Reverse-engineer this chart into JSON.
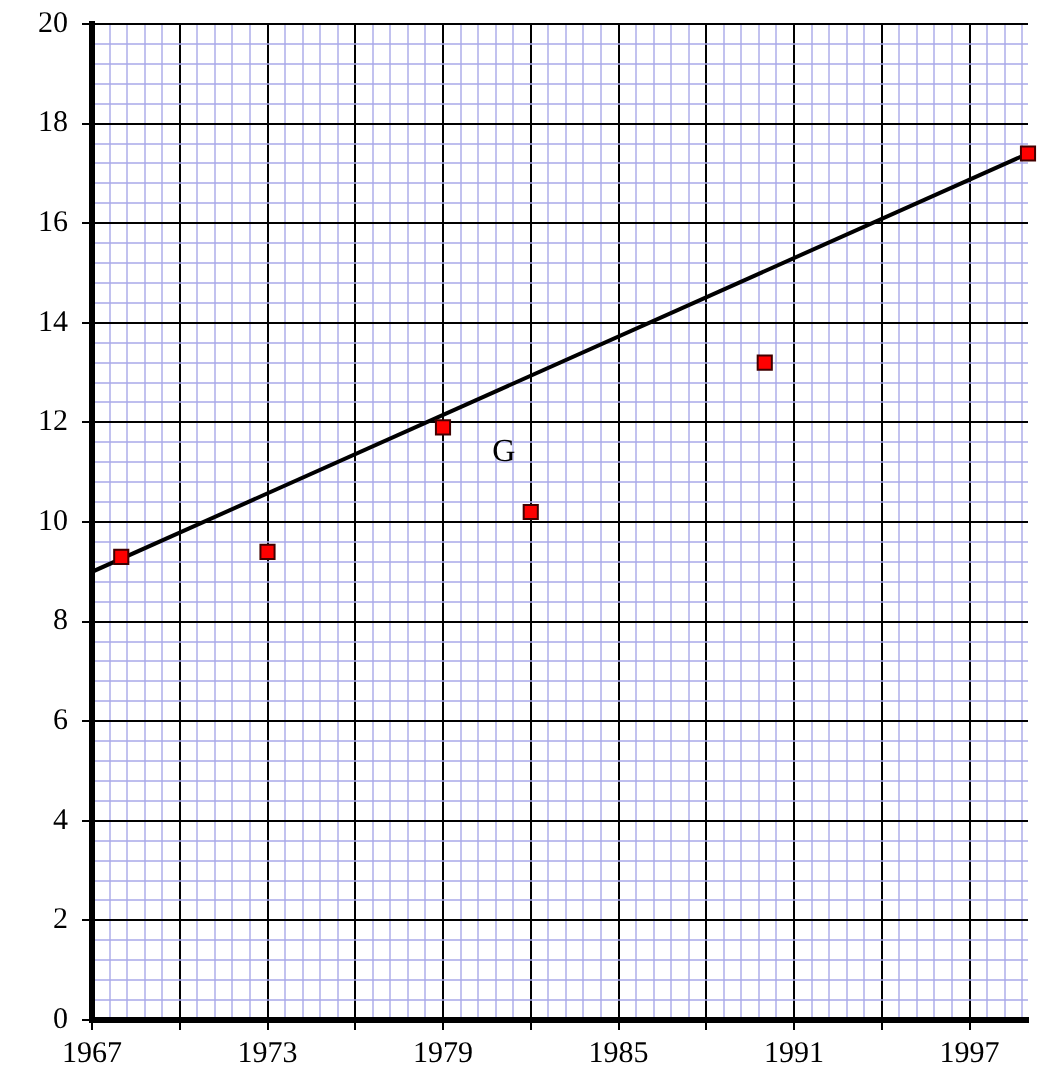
{
  "chart_data": {
    "type": "scatter",
    "grid": true,
    "legend": false,
    "xlim": [
      1967,
      1999
    ],
    "ylim": [
      0,
      20
    ],
    "xticks": [
      1967,
      {
        "value": 1967.6,
        "label": null
      },
      {
        "value": 1968.2,
        "label": null
      },
      {
        "value": 1968.8,
        "label": null
      },
      {
        "value": 1969.4,
        "label": null
      },
      {
        "value": 1970,
        "label": null
      },
      {
        "value": 1970.6,
        "label": null
      },
      {
        "value": 1971.2,
        "label": null
      },
      {
        "value": 1971.8,
        "label": null
      },
      {
        "value": 1972.4,
        "label": null
      },
      1973,
      {
        "value": 1973.6,
        "label": null
      },
      {
        "value": 1974.2,
        "label": null
      },
      {
        "value": 1974.8,
        "label": null
      },
      {
        "value": 1975.4,
        "label": null
      },
      {
        "value": 1976,
        "label": null
      },
      {
        "value": 1976.6,
        "label": null
      },
      {
        "value": 1977.2,
        "label": null
      },
      {
        "value": 1977.8,
        "label": null
      },
      {
        "value": 1978.4,
        "label": null
      },
      1979,
      {
        "value": 1979.6,
        "label": null
      },
      {
        "value": 1980.2,
        "label": null
      },
      {
        "value": 1980.8,
        "label": null
      },
      {
        "value": 1981.4,
        "label": null
      },
      {
        "value": 1982,
        "label": null
      },
      {
        "value": 1982.6,
        "label": null
      },
      {
        "value": 1983.2,
        "label": null
      },
      {
        "value": 1983.8,
        "label": null
      },
      {
        "value": 1984.4,
        "label": null
      },
      1985,
      {
        "value": 1985.6,
        "label": null
      },
      {
        "value": 1986.2,
        "label": null
      },
      {
        "value": 1986.8,
        "label": null
      },
      {
        "value": 1987.4,
        "label": null
      },
      {
        "value": 1988,
        "label": null
      },
      {
        "value": 1988.6,
        "label": null
      },
      {
        "value": 1989.2,
        "label": null
      },
      {
        "value": 1989.8,
        "label": null
      },
      {
        "value": 1990.4,
        "label": null
      },
      1991,
      {
        "value": 1991.6,
        "label": null
      },
      {
        "value": 1992.2,
        "label": null
      },
      {
        "value": 1992.8,
        "label": null
      },
      {
        "value": 1993.4,
        "label": null
      },
      {
        "value": 1994,
        "label": null
      },
      {
        "value": 1994.6,
        "label": null
      },
      {
        "value": 1995.2,
        "label": null
      },
      {
        "value": 1995.8,
        "label": null
      },
      {
        "value": 1996.4,
        "label": null
      },
      1997,
      {
        "value": 1997.6,
        "label": null
      },
      {
        "value": 1998.2,
        "label": null
      },
      {
        "value": 1998.8,
        "label": null
      }
    ],
    "yticks": [
      0,
      {
        "value": 0.4,
        "label": null
      },
      {
        "value": 0.8,
        "label": null
      },
      {
        "value": 1.2,
        "label": null
      },
      {
        "value": 1.6,
        "label": null
      },
      2,
      {
        "value": 2.4,
        "label": null
      },
      {
        "value": 2.8,
        "label": null
      },
      {
        "value": 3.2,
        "label": null
      },
      {
        "value": 3.6,
        "label": null
      },
      4,
      {
        "value": 4.4,
        "label": null
      },
      {
        "value": 4.8,
        "label": null
      },
      {
        "value": 5.2,
        "label": null
      },
      {
        "value": 5.6,
        "label": null
      },
      6,
      {
        "value": 6.4,
        "label": null
      },
      {
        "value": 6.8,
        "label": null
      },
      {
        "value": 7.2,
        "label": null
      },
      {
        "value": 7.6,
        "label": null
      },
      8,
      {
        "value": 8.4,
        "label": null
      },
      {
        "value": 8.8,
        "label": null
      },
      {
        "value": 9.2,
        "label": null
      },
      {
        "value": 9.6,
        "label": null
      },
      10,
      {
        "value": 10.4,
        "label": null
      },
      {
        "value": 10.8,
        "label": null
      },
      {
        "value": 11.2,
        "label": null
      },
      {
        "value": 11.6,
        "label": null
      },
      12,
      {
        "value": 12.4,
        "label": null
      },
      {
        "value": 12.8,
        "label": null
      },
      {
        "value": 13.2,
        "label": null
      },
      {
        "value": 13.6,
        "label": null
      },
      14,
      {
        "value": 14.4,
        "label": null
      },
      {
        "value": 14.8,
        "label": null
      },
      {
        "value": 15.2,
        "label": null
      },
      {
        "value": 15.6,
        "label": null
      },
      16,
      {
        "value": 16.4,
        "label": null
      },
      {
        "value": 16.8,
        "label": null
      },
      {
        "value": 17.2,
        "label": null
      },
      {
        "value": 17.6,
        "label": null
      },
      18,
      {
        "value": 18.4,
        "label": null
      },
      {
        "value": 18.8,
        "label": null
      },
      {
        "value": 19.2,
        "label": null
      },
      {
        "value": 19.6,
        "label": null
      },
      20
    ],
    "series": [
      {
        "type": "scatter",
        "marker": "square",
        "color": "#ff0000",
        "x": [
          1968,
          1973,
          1979,
          1982,
          1990,
          1999
        ],
        "values": [
          9.3,
          9.4,
          11.9,
          10.2,
          13.2,
          17.4
        ]
      },
      {
        "type": "line",
        "marker": "none",
        "color": "#000000",
        "x": [
          1967,
          1999
        ],
        "values": [
          9.0,
          17.4
        ]
      }
    ],
    "annotations": [
      "G"
    ]
  }
}
